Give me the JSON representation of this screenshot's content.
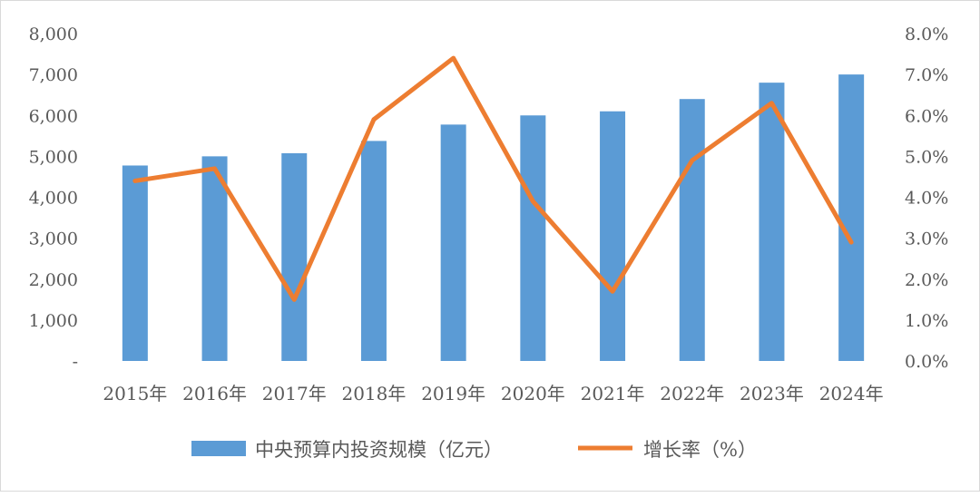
{
  "chart_data": {
    "type": "bar+line",
    "categories": [
      "2015年",
      "2016年",
      "2017年",
      "2018年",
      "2019年",
      "2020年",
      "2021年",
      "2022年",
      "2023年",
      "2024年"
    ],
    "series": [
      {
        "name": "中央预算内投资规模（亿元）",
        "type": "bar",
        "axis": "left",
        "color": "#5b9bd5",
        "values": [
          4776,
          5000,
          5076,
          5376,
          5776,
          6000,
          6100,
          6400,
          6800,
          7000
        ]
      },
      {
        "name": "增长率（%）",
        "type": "line",
        "axis": "right",
        "color": "#ed7d31",
        "values": [
          4.4,
          4.7,
          1.5,
          5.9,
          7.4,
          3.9,
          1.7,
          4.9,
          6.3,
          2.9
        ]
      }
    ],
    "left_axis": {
      "ylim": [
        0,
        8000
      ],
      "ticks": [
        "-",
        "1,000",
        "2,000",
        "3,000",
        "4,000",
        "5,000",
        "6,000",
        "7,000",
        "8,000"
      ]
    },
    "right_axis": {
      "ylim": [
        0,
        8
      ],
      "ticks": [
        "0.0%",
        "1.0%",
        "2.0%",
        "3.0%",
        "4.0%",
        "5.0%",
        "6.0%",
        "7.0%",
        "8.0%"
      ]
    },
    "grid": false,
    "legend": "bottom"
  }
}
